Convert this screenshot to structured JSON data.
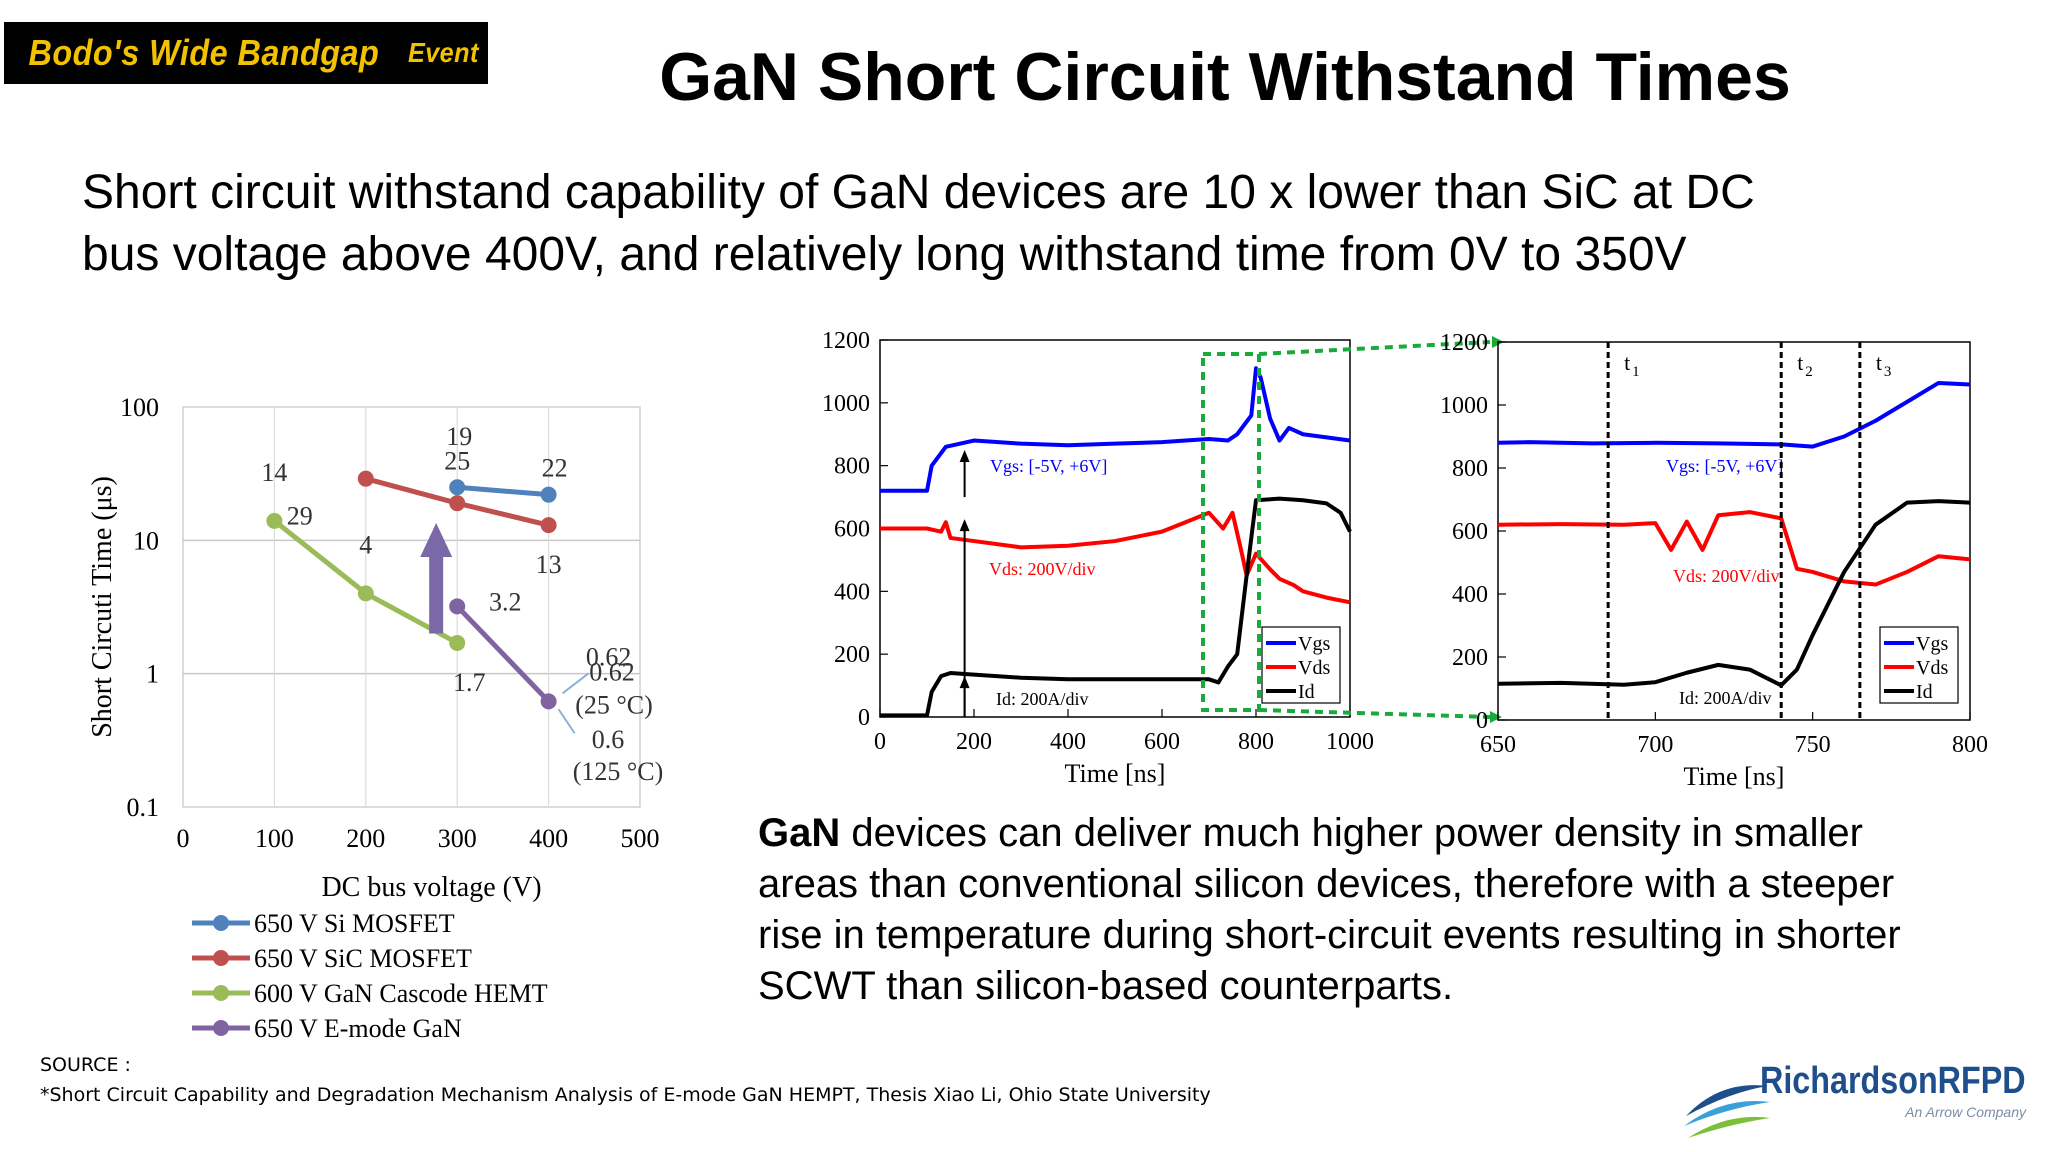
{
  "header": {
    "badge_main": "Bodo's Wide Bandgap",
    "badge_event": "Event",
    "title": "GaN Short Circuit Withstand Times"
  },
  "subtitle": {
    "line1": "Short circuit withstand capability of GaN devices are 10 x lower than SiC at DC",
    "line2": "bus voltage above 400V, and relatively long withstand time from 0V to 350V"
  },
  "body": {
    "bold_word": "GaN",
    "line1_rest": " devices can deliver much higher power density in smaller",
    "line2": "areas than conventional silicon devices, therefore with a steeper",
    "line3": "rise in temperature during short-circuit events resulting in shorter",
    "line4": "SCWT than silicon-based counterparts."
  },
  "source": {
    "label": "SOURCE :",
    "text": "*Short Circuit Capability and Degradation Mechanism Analysis of E-mode GaN HEMPT, Thesis Xiao Li, Ohio State University"
  },
  "logo": {
    "name": "RichardsonRFPD",
    "tagline": "An Arrow Company",
    "colors": [
      "#1f4e8c",
      "#3aa0d8",
      "#7cbf3a"
    ]
  },
  "chart_data": [
    {
      "type": "scatter",
      "xlabel": "DC bus voltage (V)",
      "ylabel": "Short Circuti Time (μs)",
      "xlim": [
        0,
        500
      ],
      "ylim": [
        0.1,
        100
      ],
      "yscale": "log",
      "grid": true,
      "x_ticks": [
        "0",
        "100",
        "200",
        "300",
        "400",
        "500"
      ],
      "y_ticks": [
        "0.1",
        "1",
        "10",
        "100"
      ],
      "legend_position": "bottom",
      "series": [
        {
          "name": "650 V Si MOSFET",
          "color": "#4f81bd",
          "x": [
            300,
            400
          ],
          "y": [
            25,
            22
          ],
          "labels": [
            "25",
            "22"
          ]
        },
        {
          "name": "650 V SiC MOSFET",
          "color": "#c0504d",
          "x": [
            200,
            300,
            400
          ],
          "y": [
            29,
            19,
            13
          ],
          "labels": [
            "29",
            "19",
            "13"
          ]
        },
        {
          "name": "600 V GaN Cascode HEMT",
          "color": "#9bbb59",
          "x": [
            100,
            200,
            300
          ],
          "y": [
            14,
            4,
            1.7
          ],
          "labels": [
            "14",
            "4",
            "1.7"
          ]
        },
        {
          "name": "650 V E-mode GaN",
          "color": "#8064a2",
          "x": [
            300,
            400
          ],
          "y": [
            3.2,
            0.62
          ],
          "labels": [
            "3.2",
            "0.62"
          ]
        }
      ],
      "annotations": [
        {
          "text": "0.62",
          "subtext": "(25 °C)"
        },
        {
          "text": "0.6",
          "subtext": "(125 °C)"
        }
      ],
      "arrow_color": "#7b68a6"
    },
    {
      "type": "line",
      "xlabel": "Time [ns]",
      "xlim": [
        0,
        1000
      ],
      "ylim": [
        0,
        1200
      ],
      "x_ticks": [
        "0",
        "200",
        "400",
        "600",
        "800",
        "1000"
      ],
      "y_ticks": [
        "0",
        "200",
        "400",
        "600",
        "800",
        "1000",
        "1200"
      ],
      "legend": [
        "Vgs",
        "Vds",
        "Id"
      ],
      "legend_position": "bottom-right",
      "colors": {
        "Vgs": "#0000ff",
        "Vds": "#ff0000",
        "Id": "#000000",
        "zoom_box": "#1aaa3a"
      },
      "annotations": [
        "Vgs: [-5V, +6V]",
        "Vds: 200V/div",
        "Id: 200A/div"
      ],
      "zoom_range": [
        700,
        800
      ],
      "series": [
        {
          "name": "Vgs",
          "x": [
            0,
            100,
            110,
            140,
            200,
            300,
            400,
            500,
            600,
            650,
            700,
            740,
            760,
            790,
            800,
            810,
            830,
            850,
            870,
            900,
            950,
            1000
          ],
          "y": [
            720,
            720,
            800,
            860,
            880,
            870,
            865,
            870,
            875,
            880,
            885,
            880,
            900,
            960,
            1110,
            1080,
            950,
            880,
            920,
            900,
            890,
            880
          ]
        },
        {
          "name": "Vds",
          "x": [
            0,
            100,
            130,
            140,
            150,
            200,
            300,
            400,
            500,
            600,
            650,
            700,
            730,
            750,
            770,
            780,
            800,
            830,
            850,
            880,
            900,
            950,
            1000
          ],
          "y": [
            600,
            600,
            590,
            620,
            570,
            560,
            540,
            545,
            560,
            590,
            620,
            650,
            600,
            650,
            520,
            450,
            520,
            470,
            440,
            420,
            400,
            380,
            365
          ]
        },
        {
          "name": "Id",
          "x": [
            0,
            100,
            110,
            130,
            150,
            200,
            300,
            400,
            500,
            600,
            650,
            700,
            720,
            740,
            760,
            780,
            800,
            850,
            900,
            950,
            980,
            1000
          ],
          "y": [
            5,
            5,
            80,
            130,
            140,
            135,
            125,
            120,
            120,
            120,
            120,
            120,
            110,
            160,
            200,
            450,
            690,
            695,
            690,
            680,
            650,
            590
          ]
        }
      ]
    },
    {
      "type": "line",
      "xlabel": "Time [ns]",
      "xlim": [
        650,
        800
      ],
      "ylim": [
        0,
        1200
      ],
      "x_ticks": [
        "650",
        "700",
        "750",
        "800"
      ],
      "y_ticks": [
        "0",
        "200",
        "400",
        "600",
        "800",
        "1000",
        "1200"
      ],
      "legend": [
        "Vgs",
        "Vds",
        "Id"
      ],
      "legend_position": "bottom-right",
      "colors": {
        "Vgs": "#0000ff",
        "Vds": "#ff0000",
        "Id": "#000000"
      },
      "annotations": [
        "Vgs: [-5V, +6V]",
        "Vds: 200V/div",
        "Id: 200A/div"
      ],
      "markers": [
        {
          "label": "t",
          "sub": "1",
          "x": 685
        },
        {
          "label": "t",
          "sub": "2",
          "x": 740
        },
        {
          "label": "t",
          "sub": "3",
          "x": 765
        }
      ],
      "series": [
        {
          "name": "Vgs",
          "x": [
            650,
            660,
            680,
            700,
            720,
            740,
            750,
            760,
            770,
            780,
            790,
            800
          ],
          "y": [
            880,
            882,
            878,
            880,
            878,
            875,
            868,
            900,
            950,
            1010,
            1070,
            1065
          ]
        },
        {
          "name": "Vds",
          "x": [
            650,
            670,
            690,
            700,
            705,
            710,
            715,
            720,
            730,
            740,
            745,
            750,
            760,
            770,
            780,
            790,
            800
          ],
          "y": [
            620,
            622,
            620,
            625,
            540,
            630,
            540,
            650,
            660,
            640,
            480,
            470,
            440,
            430,
            470,
            520,
            510
          ]
        },
        {
          "name": "Id",
          "x": [
            650,
            670,
            690,
            700,
            710,
            720,
            730,
            740,
            745,
            750,
            760,
            770,
            780,
            790,
            800
          ],
          "y": [
            115,
            118,
            112,
            120,
            150,
            175,
            160,
            110,
            160,
            270,
            470,
            620,
            690,
            695,
            690
          ]
        }
      ]
    }
  ]
}
